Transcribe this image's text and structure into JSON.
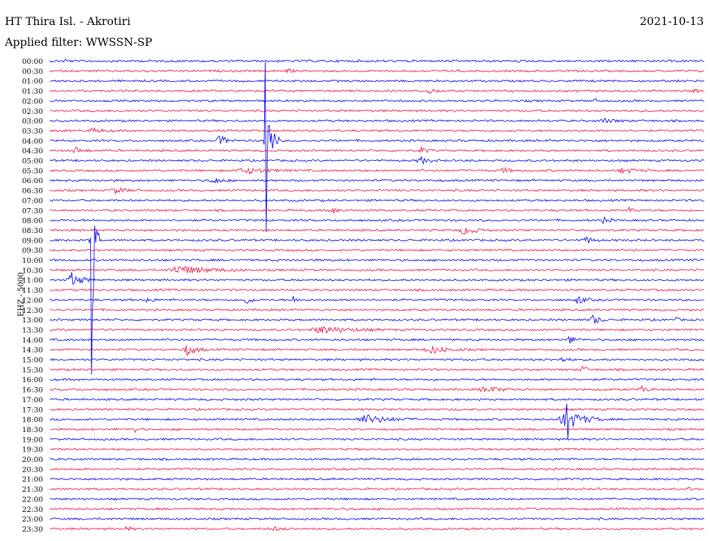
{
  "header": {
    "station": "HT Thira Isl. - Akrotiri",
    "date": "2021-10-13",
    "filter": "Applied filter: WWSSN-SP",
    "channel": "EHZ - 5000"
  },
  "colors": {
    "blue": "#0000ee",
    "red": "#ee1144"
  },
  "chart_data": {
    "type": "line",
    "title": "HT Thira Isl. - Akrotiri",
    "subtitle": "Applied filter: WWSSN-SP",
    "ylabel": "EHZ - 5000",
    "rows": [
      "00:00",
      "00:30",
      "01:00",
      "01:30",
      "02:00",
      "02:30",
      "03:00",
      "03:30",
      "04:00",
      "04:30",
      "05:00",
      "05:30",
      "06:00",
      "06:30",
      "07:00",
      "07:30",
      "08:00",
      "08:30",
      "09:00",
      "09:30",
      "10:00",
      "10:30",
      "11:00",
      "11:30",
      "12:00",
      "12:30",
      "13:00",
      "13:30",
      "14:00",
      "14:30",
      "15:00",
      "15:30",
      "16:00",
      "16:30",
      "17:00",
      "17:30",
      "18:00",
      "18:30",
      "19:00",
      "19:30",
      "20:00",
      "20:30",
      "21:00",
      "21:30",
      "22:00",
      "22:30",
      "23:00",
      "23:30"
    ],
    "row_colors": [
      "blue",
      "red"
    ],
    "x_unit": "minutes",
    "xlim": [
      0,
      30
    ],
    "events": [
      {
        "row": 0,
        "minute": 0.7,
        "amp": 3,
        "len": 0.3
      },
      {
        "row": 1,
        "minute": 10.9,
        "amp": 3,
        "len": 0.4
      },
      {
        "row": 3,
        "minute": 14.3,
        "amp": 2,
        "len": 0.4
      },
      {
        "row": 3,
        "minute": 17.4,
        "amp": 4,
        "len": 0.6
      },
      {
        "row": 3,
        "minute": 29.4,
        "amp": 4,
        "len": 0.5
      },
      {
        "row": 4,
        "minute": 24.9,
        "amp": 3,
        "len": 0.4
      },
      {
        "row": 6,
        "minute": 25.4,
        "amp": 3,
        "len": 1.0
      },
      {
        "row": 7,
        "minute": 2.0,
        "amp": 3,
        "len": 0.8
      },
      {
        "row": 8,
        "minute": 7.8,
        "amp": 8,
        "len": 0.6
      },
      {
        "row": 8,
        "minute": 9.9,
        "amp": 60,
        "len": 0.5,
        "spike": 140
      },
      {
        "row": 9,
        "minute": 1.2,
        "amp": 5,
        "len": 0.6
      },
      {
        "row": 9,
        "minute": 17.0,
        "amp": 4,
        "len": 0.6
      },
      {
        "row": 10,
        "minute": 17.0,
        "amp": 5,
        "len": 0.7
      },
      {
        "row": 11,
        "minute": 9.0,
        "amp": 4,
        "len": 2.0
      },
      {
        "row": 11,
        "minute": 20.8,
        "amp": 5,
        "len": 0.4
      },
      {
        "row": 11,
        "minute": 26.3,
        "amp": 4,
        "len": 1.0
      },
      {
        "row": 12,
        "minute": 7.5,
        "amp": 5,
        "len": 0.7
      },
      {
        "row": 13,
        "minute": 3.0,
        "amp": 4,
        "len": 1.0
      },
      {
        "row": 15,
        "minute": 12.9,
        "amp": 6,
        "len": 0.5
      },
      {
        "row": 15,
        "minute": 26.6,
        "amp": 5,
        "len": 0.4
      },
      {
        "row": 16,
        "minute": 25.4,
        "amp": 5,
        "len": 0.4
      },
      {
        "row": 17,
        "minute": 19.0,
        "amp": 6,
        "len": 1.0
      },
      {
        "row": 18,
        "minute": 24.6,
        "amp": 6,
        "len": 0.5
      },
      {
        "row": 18,
        "minute": 1.9,
        "amp": 150,
        "len": 0.3,
        "spike": 250
      },
      {
        "row": 21,
        "minute": 6.0,
        "amp": 6,
        "len": 2.5
      },
      {
        "row": 22,
        "minute": 1.0,
        "amp": 10,
        "len": 0.9
      },
      {
        "row": 24,
        "minute": 4.5,
        "amp": 5,
        "len": 0.4
      },
      {
        "row": 24,
        "minute": 9.0,
        "amp": 6,
        "len": 0.5
      },
      {
        "row": 24,
        "minute": 11.1,
        "amp": 6,
        "len": 0.4
      },
      {
        "row": 24,
        "minute": 24.2,
        "amp": 7,
        "len": 0.5
      },
      {
        "row": 26,
        "minute": 24.9,
        "amp": 7,
        "len": 0.6
      },
      {
        "row": 26,
        "minute": 28.6,
        "amp": 5,
        "len": 0.3
      },
      {
        "row": 27,
        "minute": 12.5,
        "amp": 5,
        "len": 2.5
      },
      {
        "row": 28,
        "minute": 23.8,
        "amp": 6,
        "len": 0.5
      },
      {
        "row": 29,
        "minute": 6.3,
        "amp": 8,
        "len": 0.8
      },
      {
        "row": 29,
        "minute": 17.5,
        "amp": 5,
        "len": 1.5
      },
      {
        "row": 30,
        "minute": 23.5,
        "amp": 4,
        "len": 0.5
      },
      {
        "row": 31,
        "minute": 24.4,
        "amp": 6,
        "len": 0.4
      },
      {
        "row": 33,
        "minute": 20.0,
        "amp": 4,
        "len": 1.5
      },
      {
        "row": 33,
        "minute": 27.1,
        "amp": 5,
        "len": 0.5
      },
      {
        "row": 36,
        "minute": 14.5,
        "amp": 6,
        "len": 2.0
      },
      {
        "row": 36,
        "minute": 23.7,
        "amp": 14,
        "len": 1.5,
        "spike": 36
      },
      {
        "row": 37,
        "minute": 3.9,
        "amp": 5,
        "len": 0.3
      },
      {
        "row": 43,
        "minute": 29.2,
        "amp": 3,
        "len": 0.4
      },
      {
        "row": 47,
        "minute": 3.5,
        "amp": 3,
        "len": 0.4
      },
      {
        "row": 47,
        "minute": 10.2,
        "amp": 3,
        "len": 0.8
      }
    ]
  }
}
